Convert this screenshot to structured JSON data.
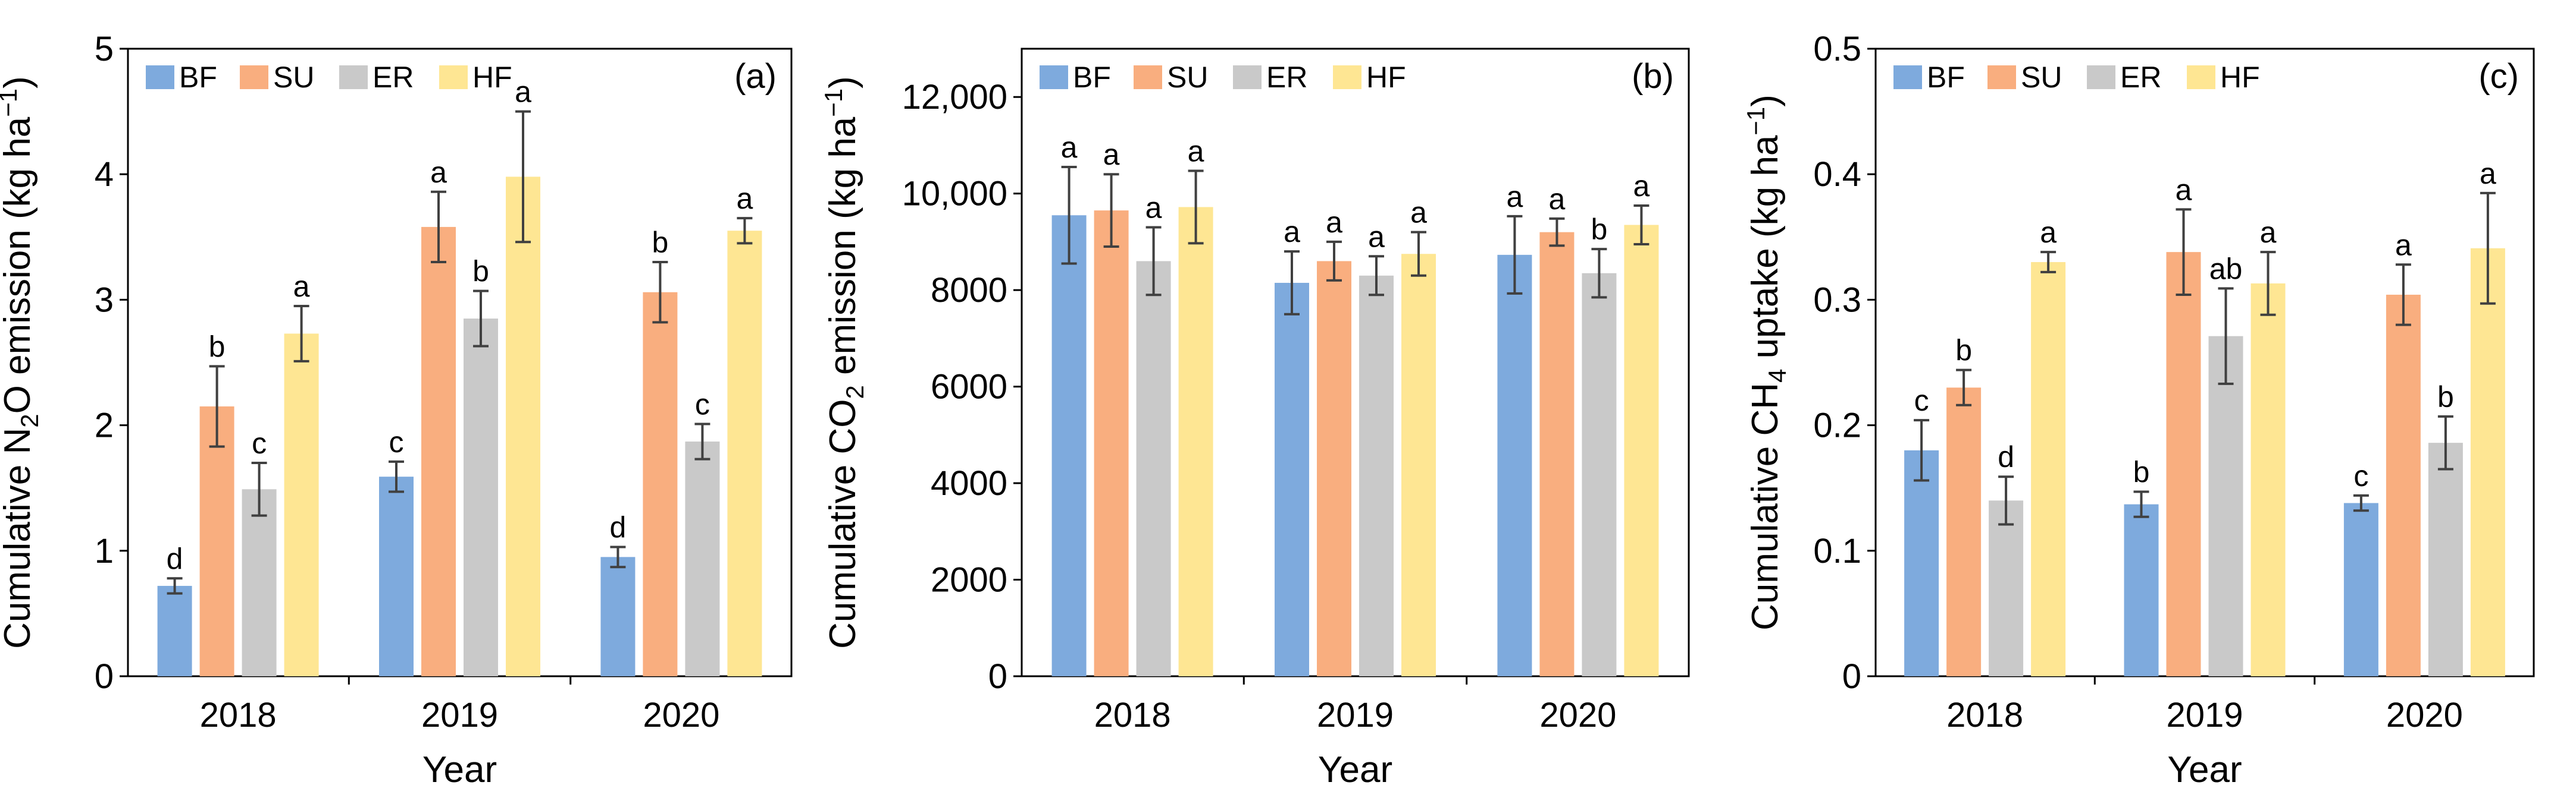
{
  "series_colors": {
    "BF": "#7eaadd",
    "SU": "#f9ae7f",
    "ER": "#c9c9c9",
    "HF": "#fee693"
  },
  "chart_data": [
    {
      "panel": "(a)",
      "type": "bar",
      "categories": [
        "2018",
        "2019",
        "2020"
      ],
      "xlabel": "Year",
      "ylabel_parts": {
        "pre": "Cumulative N",
        "sub": "2",
        "mid": "O emission (kg ha",
        "sup": "−1",
        "post": ")"
      },
      "ylim": [
        0,
        5
      ],
      "yticks": [
        0,
        1,
        2,
        3,
        4,
        5
      ],
      "ytick_labels": [
        "0",
        "1",
        "2",
        "3",
        "4",
        "5"
      ],
      "legend": [
        "BF",
        "SU",
        "ER",
        "HF"
      ],
      "series": [
        {
          "name": "BF",
          "values": [
            0.72,
            1.59,
            0.95
          ],
          "errors": [
            0.06,
            0.12,
            0.08
          ],
          "letters": [
            "d",
            "c",
            "d"
          ]
        },
        {
          "name": "SU",
          "values": [
            2.15,
            3.58,
            3.06
          ],
          "errors": [
            0.32,
            0.28,
            0.24
          ],
          "letters": [
            "b",
            "a",
            "b"
          ]
        },
        {
          "name": "ER",
          "values": [
            1.49,
            2.85,
            1.87
          ],
          "errors": [
            0.21,
            0.22,
            0.14
          ],
          "letters": [
            "c",
            "b",
            "c"
          ]
        },
        {
          "name": "HF",
          "values": [
            2.73,
            3.98,
            3.55
          ],
          "errors": [
            0.22,
            0.52,
            0.1
          ],
          "letters": [
            "a",
            "a",
            "a"
          ]
        }
      ]
    },
    {
      "panel": "(b)",
      "type": "bar",
      "categories": [
        "2018",
        "2019",
        "2020"
      ],
      "xlabel": "Year",
      "ylabel_parts": {
        "pre": "Cumulative CO",
        "sub": "2",
        "mid": " emission (kg ha",
        "sup": "−1",
        "post": ")"
      },
      "ylim": [
        0,
        13000
      ],
      "yticks": [
        0,
        2000,
        4000,
        6000,
        8000,
        10000,
        12000
      ],
      "ytick_labels": [
        "0",
        "2000",
        "4000",
        "6000",
        "8000",
        "10,000",
        "12,000"
      ],
      "legend": [
        "BF",
        "SU",
        "ER",
        "HF"
      ],
      "series": [
        {
          "name": "BF",
          "values": [
            9550,
            8150,
            8730
          ],
          "errors": [
            1000,
            650,
            800
          ],
          "letters": [
            "a",
            "a",
            "a"
          ]
        },
        {
          "name": "SU",
          "values": [
            9650,
            8600,
            9200
          ],
          "errors": [
            750,
            400,
            280
          ],
          "letters": [
            "a",
            "a",
            "a"
          ]
        },
        {
          "name": "ER",
          "values": [
            8600,
            8300,
            8350
          ],
          "errors": [
            700,
            400,
            500
          ],
          "letters": [
            "a",
            "a",
            "b"
          ]
        },
        {
          "name": "HF",
          "values": [
            9720,
            8750,
            9350
          ],
          "errors": [
            750,
            450,
            400
          ],
          "letters": [
            "a",
            "a",
            "a"
          ]
        }
      ]
    },
    {
      "panel": "(c)",
      "type": "bar",
      "categories": [
        "2018",
        "2019",
        "2020"
      ],
      "xlabel": "Year",
      "ylabel_parts": {
        "pre": "Cumulative CH",
        "sub": "4",
        "mid": " uptake (kg ha",
        "sup": "−1",
        "post": ")"
      },
      "ylim": [
        0,
        0.5
      ],
      "yticks": [
        0,
        0.1,
        0.2,
        0.3,
        0.4,
        0.5
      ],
      "ytick_labels": [
        "0",
        "0.1",
        "0.2",
        "0.3",
        "0.4",
        "0.5"
      ],
      "legend": [
        "BF",
        "SU",
        "ER",
        "HF"
      ],
      "series": [
        {
          "name": "BF",
          "values": [
            0.18,
            0.137,
            0.138
          ],
          "errors": [
            0.024,
            0.01,
            0.006
          ],
          "letters": [
            "c",
            "b",
            "c"
          ]
        },
        {
          "name": "SU",
          "values": [
            0.23,
            0.338,
            0.304
          ],
          "errors": [
            0.014,
            0.034,
            0.024
          ],
          "letters": [
            "b",
            "a",
            "a"
          ]
        },
        {
          "name": "ER",
          "values": [
            0.14,
            0.271,
            0.186
          ],
          "errors": [
            0.019,
            0.038,
            0.021
          ],
          "letters": [
            "d",
            "ab",
            "b"
          ]
        },
        {
          "name": "HF",
          "values": [
            0.33,
            0.313,
            0.341
          ],
          "errors": [
            0.008,
            0.025,
            0.044
          ],
          "letters": [
            "a",
            "a",
            "a"
          ]
        }
      ]
    }
  ]
}
